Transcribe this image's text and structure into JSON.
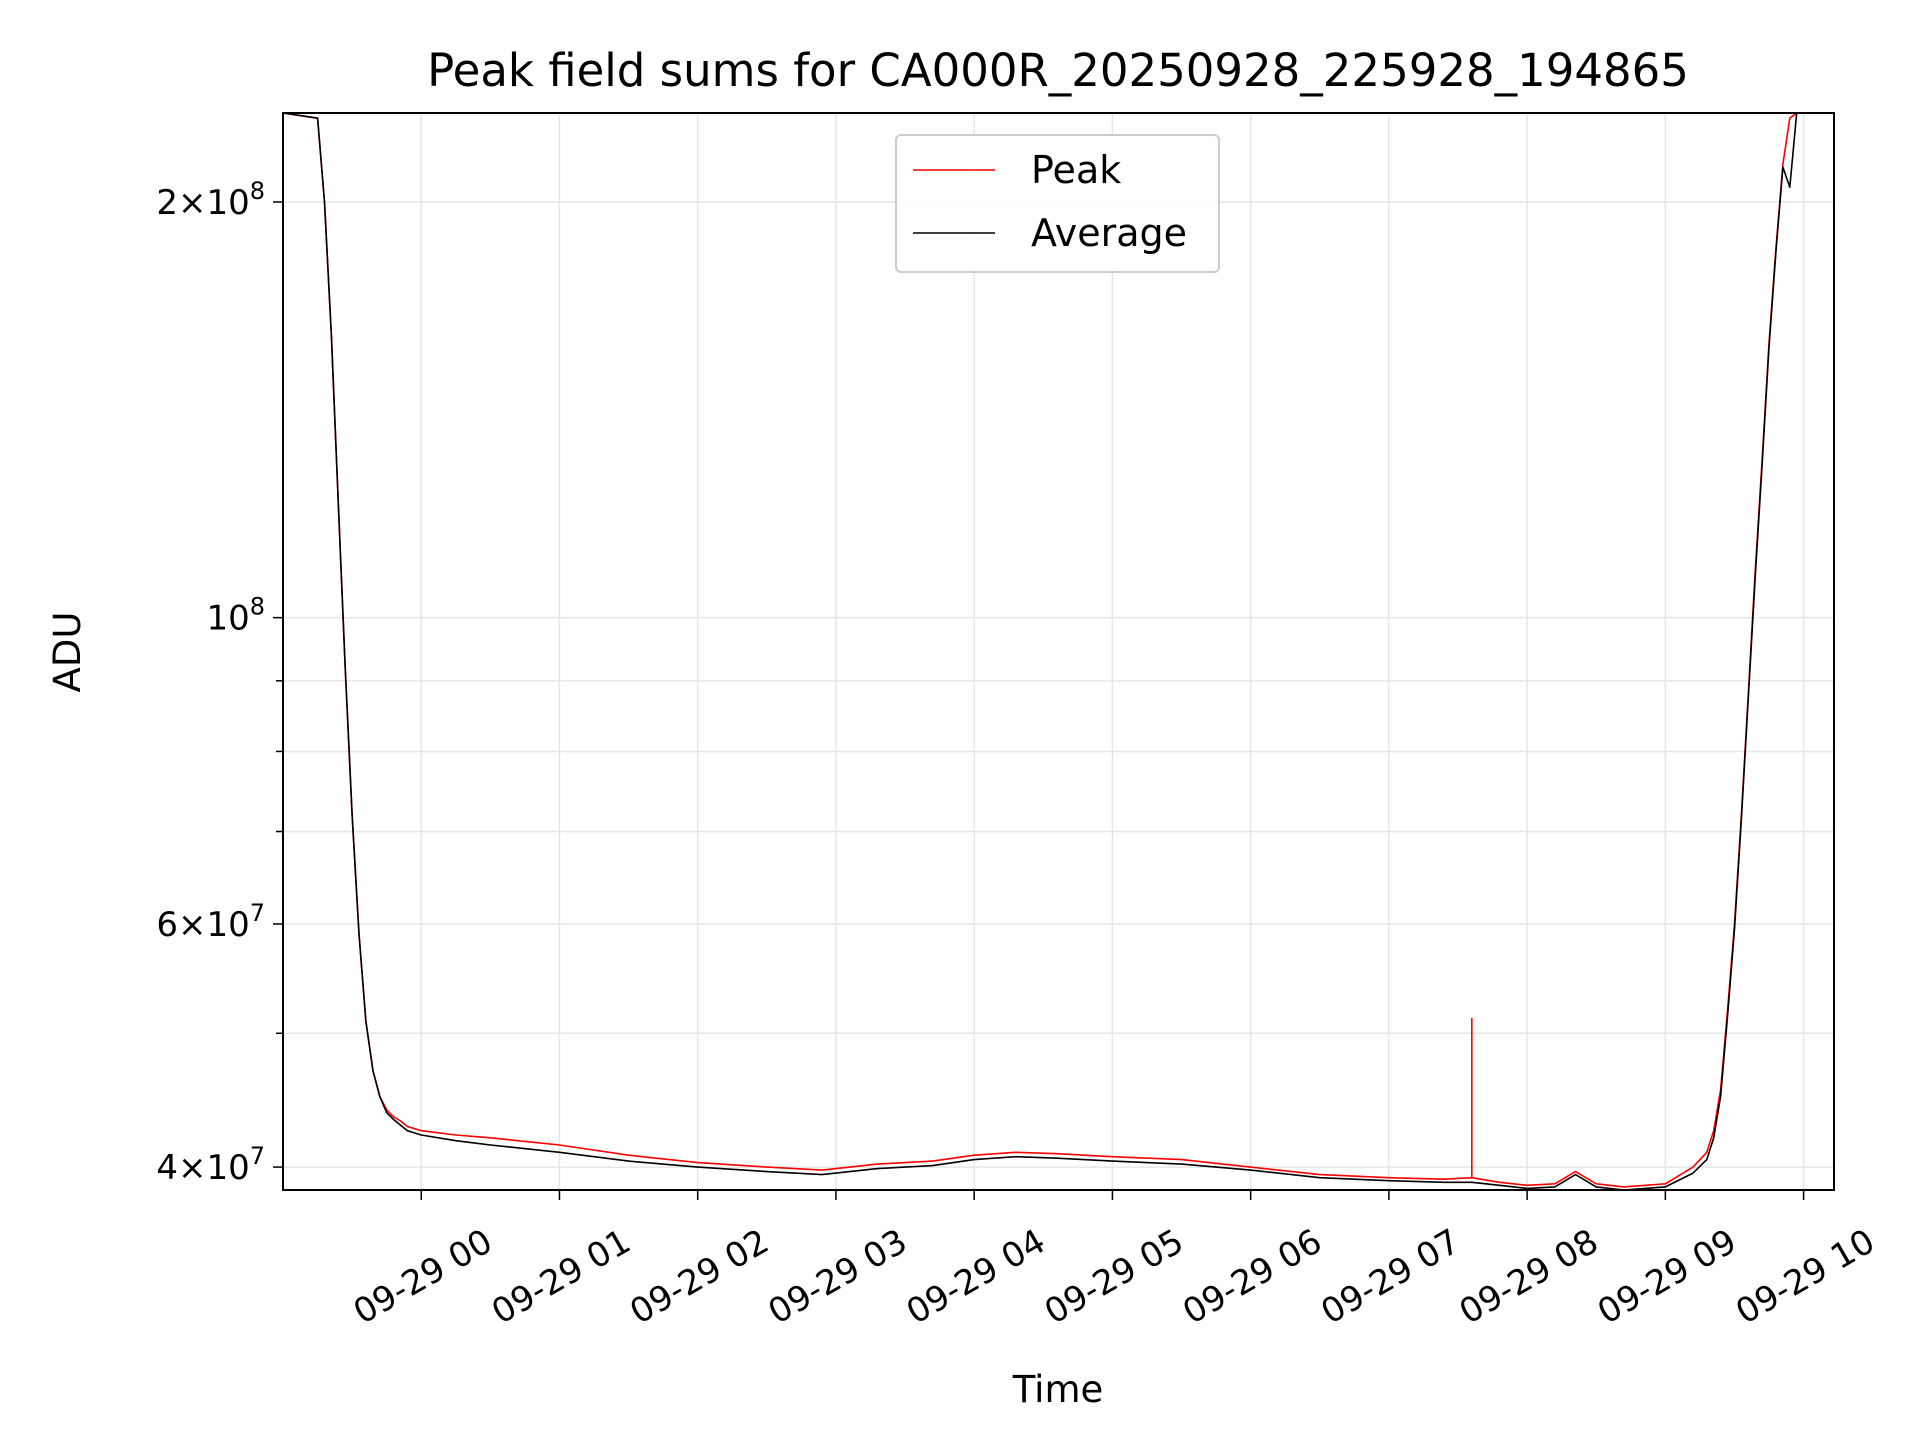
{
  "chart_data": {
    "type": "line",
    "title": "Peak field sums for CA000R_20250928_225928_194865",
    "xlabel": "Time",
    "ylabel": "ADU",
    "yscale": "log",
    "ylim": [
      38500000,
      232000000
    ],
    "xlim_hours": [
      -1.0,
      10.22
    ],
    "grid": true,
    "legend_position": "upper-center",
    "y_ticks": [
      {
        "value": 40000000,
        "mantissa": "4",
        "exponent": "7"
      },
      {
        "value": 60000000,
        "mantissa": "6",
        "exponent": "7"
      },
      {
        "value": 100000000,
        "mantissa": "",
        "exponent": "8"
      },
      {
        "value": 200000000,
        "mantissa": "2",
        "exponent": "8"
      }
    ],
    "x_ticks": [
      {
        "hour": 0,
        "label": "09-29 00"
      },
      {
        "hour": 1,
        "label": "09-29 01"
      },
      {
        "hour": 2,
        "label": "09-29 02"
      },
      {
        "hour": 3,
        "label": "09-29 03"
      },
      {
        "hour": 4,
        "label": "09-29 04"
      },
      {
        "hour": 5,
        "label": "09-29 05"
      },
      {
        "hour": 6,
        "label": "09-29 06"
      },
      {
        "hour": 7,
        "label": "09-29 07"
      },
      {
        "hour": 8,
        "label": "09-29 08"
      },
      {
        "hour": 9,
        "label": "09-29 09"
      },
      {
        "hour": 10,
        "label": "09-29 10"
      }
    ],
    "series": [
      {
        "name": "Peak",
        "color": "#ff0000",
        "x_hours": [
          -1.0,
          -0.75,
          -0.7,
          -0.65,
          -0.6,
          -0.55,
          -0.5,
          -0.45,
          -0.4,
          -0.35,
          -0.3,
          -0.25,
          -0.2,
          -0.15,
          -0.1,
          0.0,
          0.25,
          0.5,
          1.0,
          1.5,
          2.0,
          2.5,
          2.9,
          3.3,
          3.7,
          4.0,
          4.3,
          4.6,
          5.0,
          5.5,
          6.0,
          6.5,
          7.0,
          7.4,
          7.6,
          7.8,
          8.0,
          8.2,
          8.35,
          8.5,
          8.7,
          9.0,
          9.2,
          9.3,
          9.35,
          9.4,
          9.45,
          9.5,
          9.55,
          9.6,
          9.65,
          9.7,
          9.75,
          9.8,
          9.85,
          9.9,
          9.95,
          10.0,
          10.22
        ],
        "values": [
          232000000,
          230000000,
          200000000,
          160000000,
          121000000,
          92000000,
          72000000,
          59000000,
          51000000,
          47000000,
          45000000,
          44000000,
          43500000,
          43200000,
          42800000,
          42500000,
          42200000,
          42000000,
          41500000,
          40800000,
          40300000,
          40000000,
          39800000,
          40200000,
          40400000,
          40800000,
          41000000,
          40900000,
          40700000,
          40500000,
          40000000,
          39500000,
          39300000,
          39200000,
          39300000,
          39000000,
          38800000,
          38900000,
          39700000,
          38900000,
          38700000,
          38900000,
          40000000,
          41000000,
          42500000,
          45500000,
          52000000,
          60000000,
          72000000,
          88000000,
          108000000,
          130000000,
          158000000,
          185000000,
          213000000,
          230000000,
          232000000,
          232000000,
          232000000
        ],
        "spikes": [
          {
            "hour": 7.6,
            "value": 51300000
          }
        ]
      },
      {
        "name": "Average",
        "color": "#000000",
        "x_hours": [
          -1.0,
          -0.75,
          -0.7,
          -0.65,
          -0.6,
          -0.55,
          -0.5,
          -0.45,
          -0.4,
          -0.35,
          -0.3,
          -0.25,
          -0.2,
          -0.15,
          -0.1,
          0.0,
          0.25,
          0.5,
          1.0,
          1.5,
          2.0,
          2.5,
          2.9,
          3.3,
          3.7,
          4.0,
          4.3,
          4.6,
          5.0,
          5.5,
          6.0,
          6.5,
          7.0,
          7.4,
          7.6,
          7.8,
          8.0,
          8.2,
          8.35,
          8.5,
          8.7,
          9.0,
          9.2,
          9.3,
          9.35,
          9.4,
          9.45,
          9.5,
          9.55,
          9.6,
          9.65,
          9.7,
          9.75,
          9.8,
          9.85,
          9.9,
          9.95,
          10.0,
          10.22
        ],
        "values": [
          232000000,
          230000000,
          200000000,
          160000000,
          121000000,
          92000000,
          72000000,
          59000000,
          51000000,
          47000000,
          45000000,
          43800000,
          43300000,
          42900000,
          42500000,
          42200000,
          41800000,
          41500000,
          41000000,
          40400000,
          40000000,
          39700000,
          39500000,
          39900000,
          40100000,
          40500000,
          40700000,
          40600000,
          40400000,
          40200000,
          39800000,
          39300000,
          39100000,
          39000000,
          39000000,
          38800000,
          38600000,
          38700000,
          39500000,
          38700000,
          38500000,
          38700000,
          39600000,
          40500000,
          42000000,
          45000000,
          51500000,
          59500000,
          71500000,
          87500000,
          107000000,
          129000000,
          157000000,
          184000000,
          212000000,
          205000000,
          232000000,
          232000000,
          232000000
        ]
      }
    ]
  }
}
